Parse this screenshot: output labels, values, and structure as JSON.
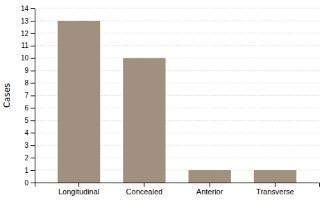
{
  "chart_data": {
    "type": "bar",
    "ylabel": "Cases",
    "categories": [
      "Longitudinal",
      "Concealed",
      "Anterior",
      "Transverse"
    ],
    "values": [
      13,
      10,
      1,
      1
    ],
    "color": "#a09080",
    "ylim": [
      0,
      14
    ],
    "yticks": [
      0,
      1,
      2,
      3,
      4,
      5,
      6,
      7,
      8,
      9,
      10,
      11,
      12,
      13,
      14
    ],
    "grid": true
  }
}
